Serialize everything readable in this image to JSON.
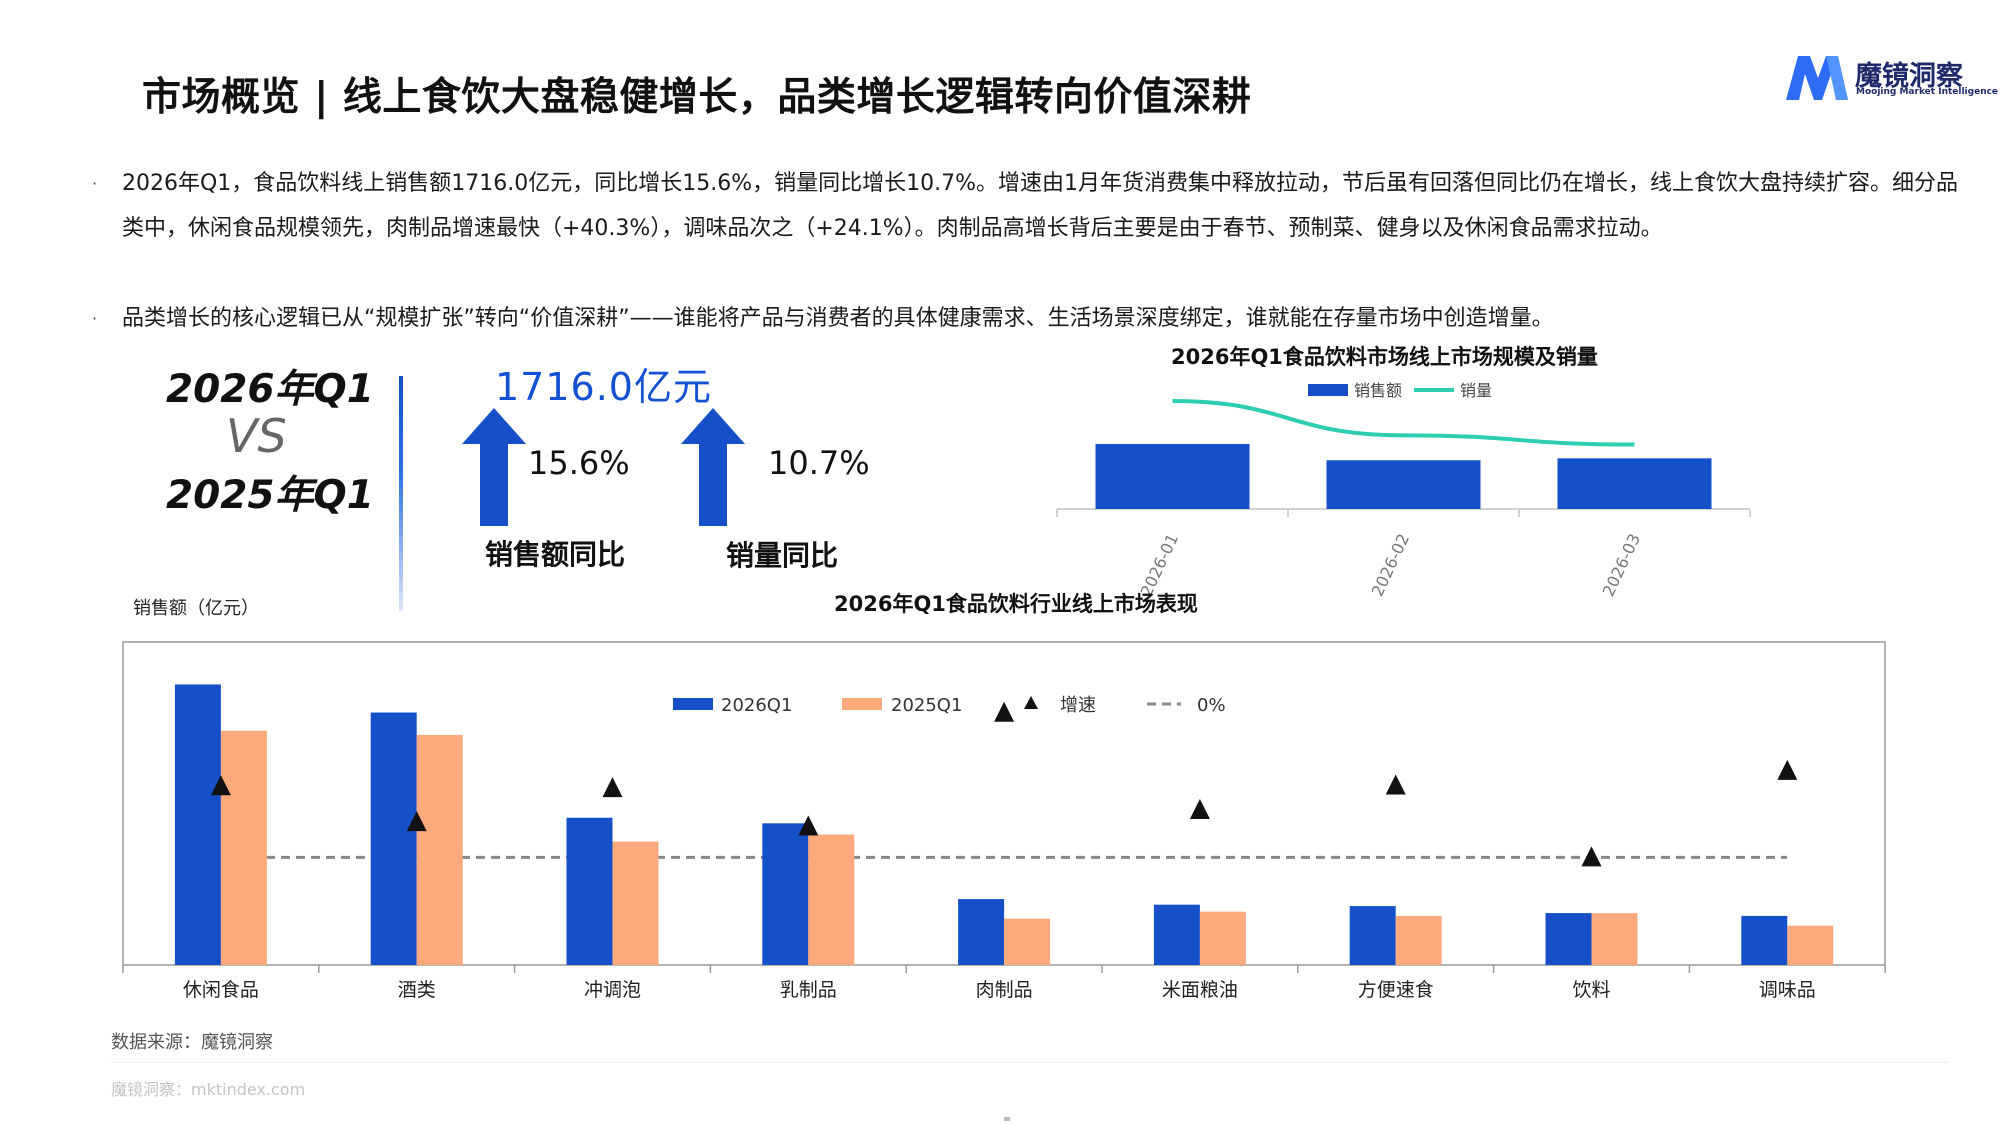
{
  "header": {
    "title": "市场概览 | 线上食饮大盘稳健增长，品类增长逻辑转向价值深耕",
    "logo_name": "魔镜洞察",
    "logo_sub": "Moojing Market Intelligence"
  },
  "bullets": [
    "2026年Q1，食品饮料线上销售额1716.0亿元，同比增长15.6%，销量同比增长10.7%。增速由1月年货消费集中释放拉动，节后虽有回落但同比仍在增长，线上食饮大盘持续扩容。细分品类中，休闲食品规模领先，肉制品增速最快（+40.3%），调味品次之（+24.1%）。肉制品高增长背后主要是由于春节、预制菜、健身以及休闲食品需求拉动。",
    "品类增长的核心逻辑已从“规模扩张”转向“价值深耕”——谁能将产品与消费者的具体健康需求、生活场景深度绑定，谁就能在存量市场中创造增量。"
  ],
  "bullet_mark": "·",
  "comparison": {
    "current": "2026年Q1",
    "vs": "VS",
    "previous": "2025年Q1"
  },
  "kpi": {
    "sales_value": "1716.0亿元",
    "sales_growth": "15.6%",
    "sales_growth_label": "销售额同比",
    "volume_growth": "10.7%",
    "volume_growth_label": "销量同比"
  },
  "colors": {
    "blue": "#1650c9",
    "orange": "#fca97b",
    "teal": "#2ccdb1",
    "title_blue": "#1450d2"
  },
  "chart_data": [
    {
      "type": "bar",
      "title": "2026年Q1食品饮料市场线上市场规模及销量",
      "categories": [
        "2026-01",
        "2026-02",
        "2026-03"
      ],
      "series": [
        {
          "name": "销售额",
          "type": "bar",
          "values": [
            1.0,
            0.75,
            0.78
          ]
        },
        {
          "name": "销量",
          "type": "line",
          "values": [
            1.0,
            0.74,
            0.67
          ]
        }
      ],
      "xlabel": "",
      "ylabel": "",
      "legend": "top",
      "grid": false,
      "note": ""
    },
    {
      "type": "bar",
      "title": "2026年Q1食品饮料行业线上市场表现",
      "ylabel": "销售额（亿元）",
      "categories": [
        "休闲食品",
        "酒类",
        "冲调泡",
        "乳制品",
        "肉制品",
        "米面粮油",
        "方便速食",
        "饮料",
        "调味品"
      ],
      "series": [
        {
          "name": "2026Q1",
          "values": [
            100,
            90,
            52.5,
            50.5,
            23.5,
            21.5,
            21,
            18.5,
            17.5
          ]
        },
        {
          "name": "2025Q1",
          "values": [
            83.5,
            82,
            44,
            46.5,
            16.5,
            19,
            17.5,
            18.5,
            14
          ]
        }
      ],
      "growth_series": {
        "name": "增速",
        "values": [
          19.8,
          9.8,
          19.3,
          8.6,
          40.3,
          13.2,
          20.0,
          0.0,
          24.1
        ]
      },
      "zero_line": {
        "name": "0%",
        "value": 0
      },
      "ylim_sales": [
        0,
        108
      ],
      "ylim_growth": [
        -30,
        60
      ],
      "legend": "top-center",
      "grid": false
    }
  ],
  "source": "数据来源：魔镜洞察",
  "footer": "魔镜洞察：mktindex.com"
}
